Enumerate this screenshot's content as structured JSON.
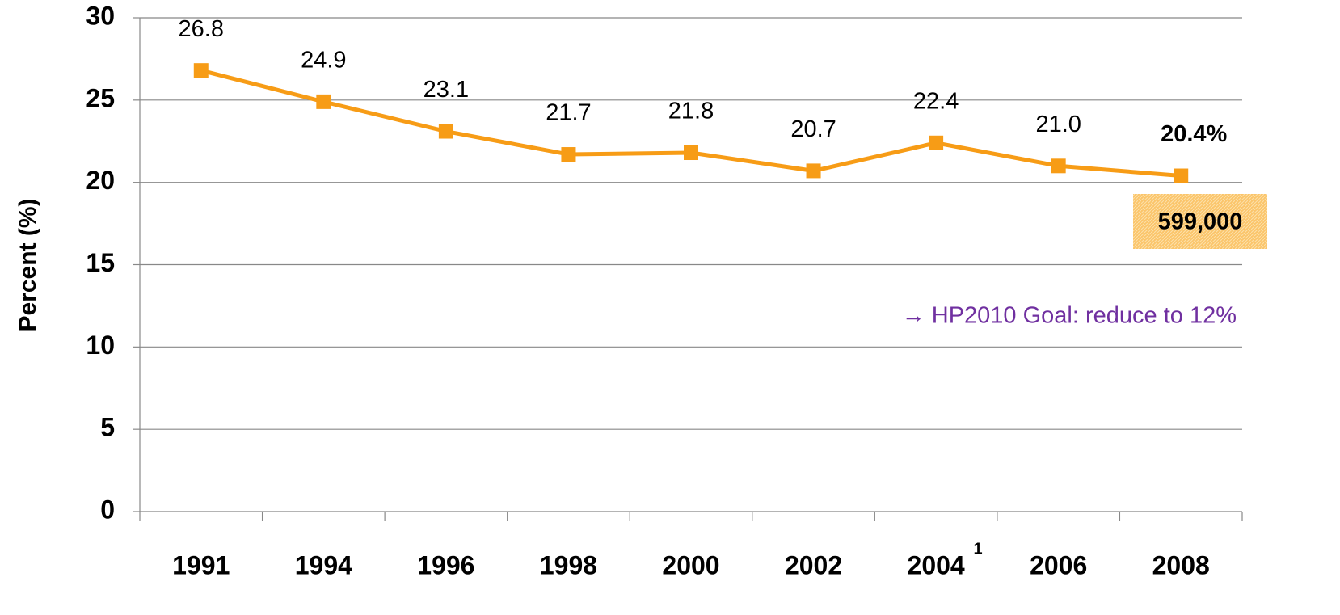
{
  "chart_data": {
    "type": "line",
    "y_label": "Percent (%)",
    "categories": [
      "1991",
      "1994",
      "1996",
      "1998",
      "2000",
      "2002",
      "2004",
      "2006",
      "2008"
    ],
    "category_footnotes": [
      null,
      null,
      null,
      null,
      null,
      null,
      "1",
      null,
      null
    ],
    "values": [
      26.8,
      24.9,
      23.1,
      21.7,
      21.8,
      20.7,
      22.4,
      21.0,
      20.4
    ],
    "value_labels": [
      "26.8",
      "24.9",
      "23.1",
      "21.7",
      "21.8",
      "20.7",
      "22.4",
      "21.0",
      "20.4%"
    ],
    "color": "#f79c16",
    "ylim": [
      0,
      30
    ],
    "yticks": [
      0,
      5,
      10,
      15,
      20,
      25,
      30
    ],
    "grid": true,
    "annotations": [
      "599,000",
      "→ HP2010 Goal: reduce to 12%"
    ]
  }
}
